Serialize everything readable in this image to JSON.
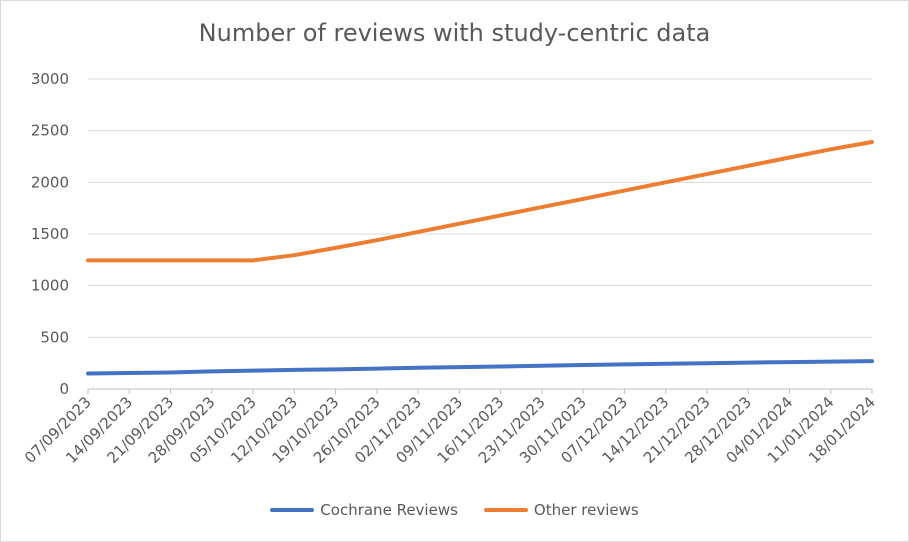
{
  "chart_data": {
    "type": "line",
    "title": "Number of reviews with study-centric data",
    "xlabel": "",
    "ylabel": "",
    "ylim": [
      0,
      3000
    ],
    "yticks": [
      0,
      500,
      1000,
      1500,
      2000,
      2500,
      3000
    ],
    "grid": true,
    "legend_position": "bottom",
    "categories": [
      "07/09/2023",
      "14/09/2023",
      "21/09/2023",
      "28/09/2023",
      "05/10/2023",
      "12/10/2023",
      "19/10/2023",
      "26/10/2023",
      "02/11/2023",
      "09/11/2023",
      "16/11/2023",
      "23/11/2023",
      "30/11/2023",
      "07/12/2023",
      "14/12/2023",
      "21/12/2023",
      "28/12/2023",
      "04/01/2024",
      "11/01/2024",
      "18/01/2024"
    ],
    "series": [
      {
        "name": "Cochrane Reviews",
        "color": "#4472c4",
        "values": [
          150,
          155,
          160,
          170,
          178,
          185,
          190,
          197,
          205,
          212,
          218,
          225,
          232,
          238,
          245,
          250,
          255,
          260,
          265,
          270
        ]
      },
      {
        "name": "Other reviews",
        "color": "#ed7d31",
        "values": [
          1245,
          1245,
          1245,
          1245,
          1245,
          1295,
          1365,
          1440,
          1520,
          1600,
          1680,
          1760,
          1840,
          1920,
          2000,
          2080,
          2160,
          2240,
          2320,
          2390
        ]
      }
    ]
  }
}
